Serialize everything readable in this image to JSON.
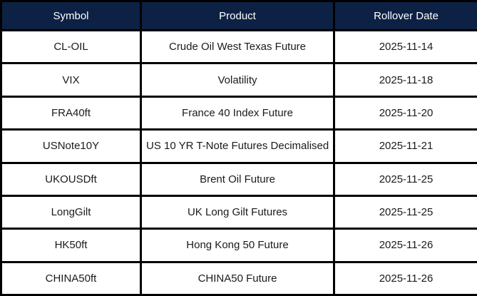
{
  "table": {
    "name": "futures-rollover-schedule",
    "columns": [
      "Symbol",
      "Product",
      "Rollover Date"
    ],
    "rows": [
      {
        "symbol": "CL-OIL",
        "product": "Crude Oil West Texas Future",
        "rollover_date": "2025-11-14"
      },
      {
        "symbol": "VIX",
        "product": "Volatility",
        "rollover_date": "2025-11-18"
      },
      {
        "symbol": "FRA40ft",
        "product": "France 40 Index Future",
        "rollover_date": "2025-11-20"
      },
      {
        "symbol": "USNote10Y",
        "product": "US 10 YR T-Note Futures Decimalised",
        "rollover_date": "2025-11-21"
      },
      {
        "symbol": "UKOUSDft",
        "product": "Brent Oil Future",
        "rollover_date": "2025-11-25"
      },
      {
        "symbol": "LongGilt",
        "product": "UK Long Gilt Futures",
        "rollover_date": "2025-11-25"
      },
      {
        "symbol": "HK50ft",
        "product": "Hong Kong 50 Future",
        "rollover_date": "2025-11-26"
      },
      {
        "symbol": "CHINA50ft",
        "product": "CHINA50 Future",
        "rollover_date": "2025-11-26"
      }
    ]
  },
  "colors": {
    "header_bg": "#0d2145",
    "header_text": "#ffffff",
    "border": "#000000",
    "body_bg": "#ffffff",
    "body_text": "#1a1a1a"
  }
}
